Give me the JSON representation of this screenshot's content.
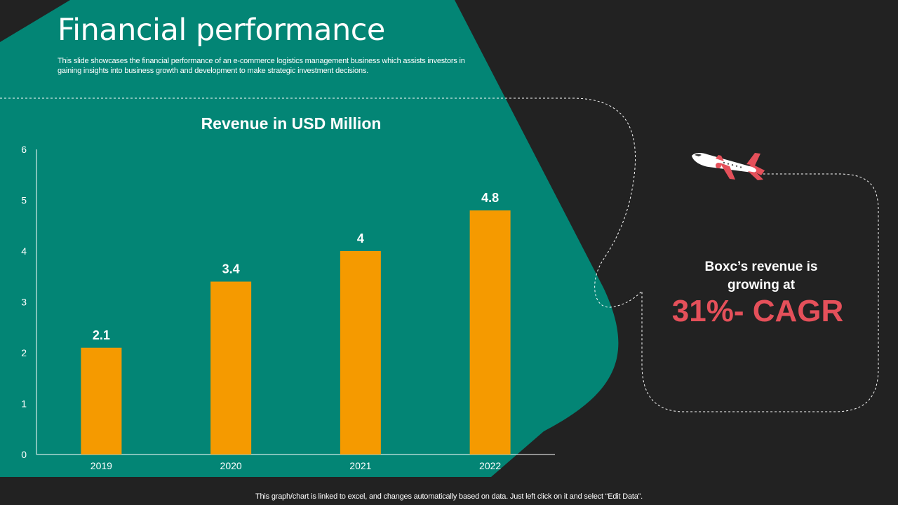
{
  "slide": {
    "title": "Financial performance",
    "subtitle": "This slide showcases the financial performance of an e-commerce logistics management business which assists investors in gaining insights into business growth and development to make strategic investment decisions.",
    "footer": "This graph/chart is linked to excel,  and changes automatically based on data. Just left click on it and select “Edit Data”."
  },
  "callout": {
    "line1": "Boxc’s revenue is",
    "line2": "growing  at",
    "highlight": "31%- CAGR"
  },
  "colors": {
    "background": "#222222",
    "teal": "#038575",
    "bar": "#f59a00",
    "accent": "#e5505a",
    "text": "#ffffff"
  },
  "chart_data": {
    "type": "bar",
    "title": "Revenue in USD Million",
    "categories": [
      "2019",
      "2020",
      "2021",
      "2022"
    ],
    "values": [
      2.1,
      3.4,
      4,
      4.8
    ],
    "value_labels": [
      "2.1",
      "3.4",
      "4",
      "4.8"
    ],
    "ylim": [
      0,
      6
    ],
    "yticks": [
      0,
      1,
      2,
      3,
      4,
      5,
      6
    ],
    "xlabel": "",
    "ylabel": "",
    "grid": false,
    "legend": "none"
  }
}
